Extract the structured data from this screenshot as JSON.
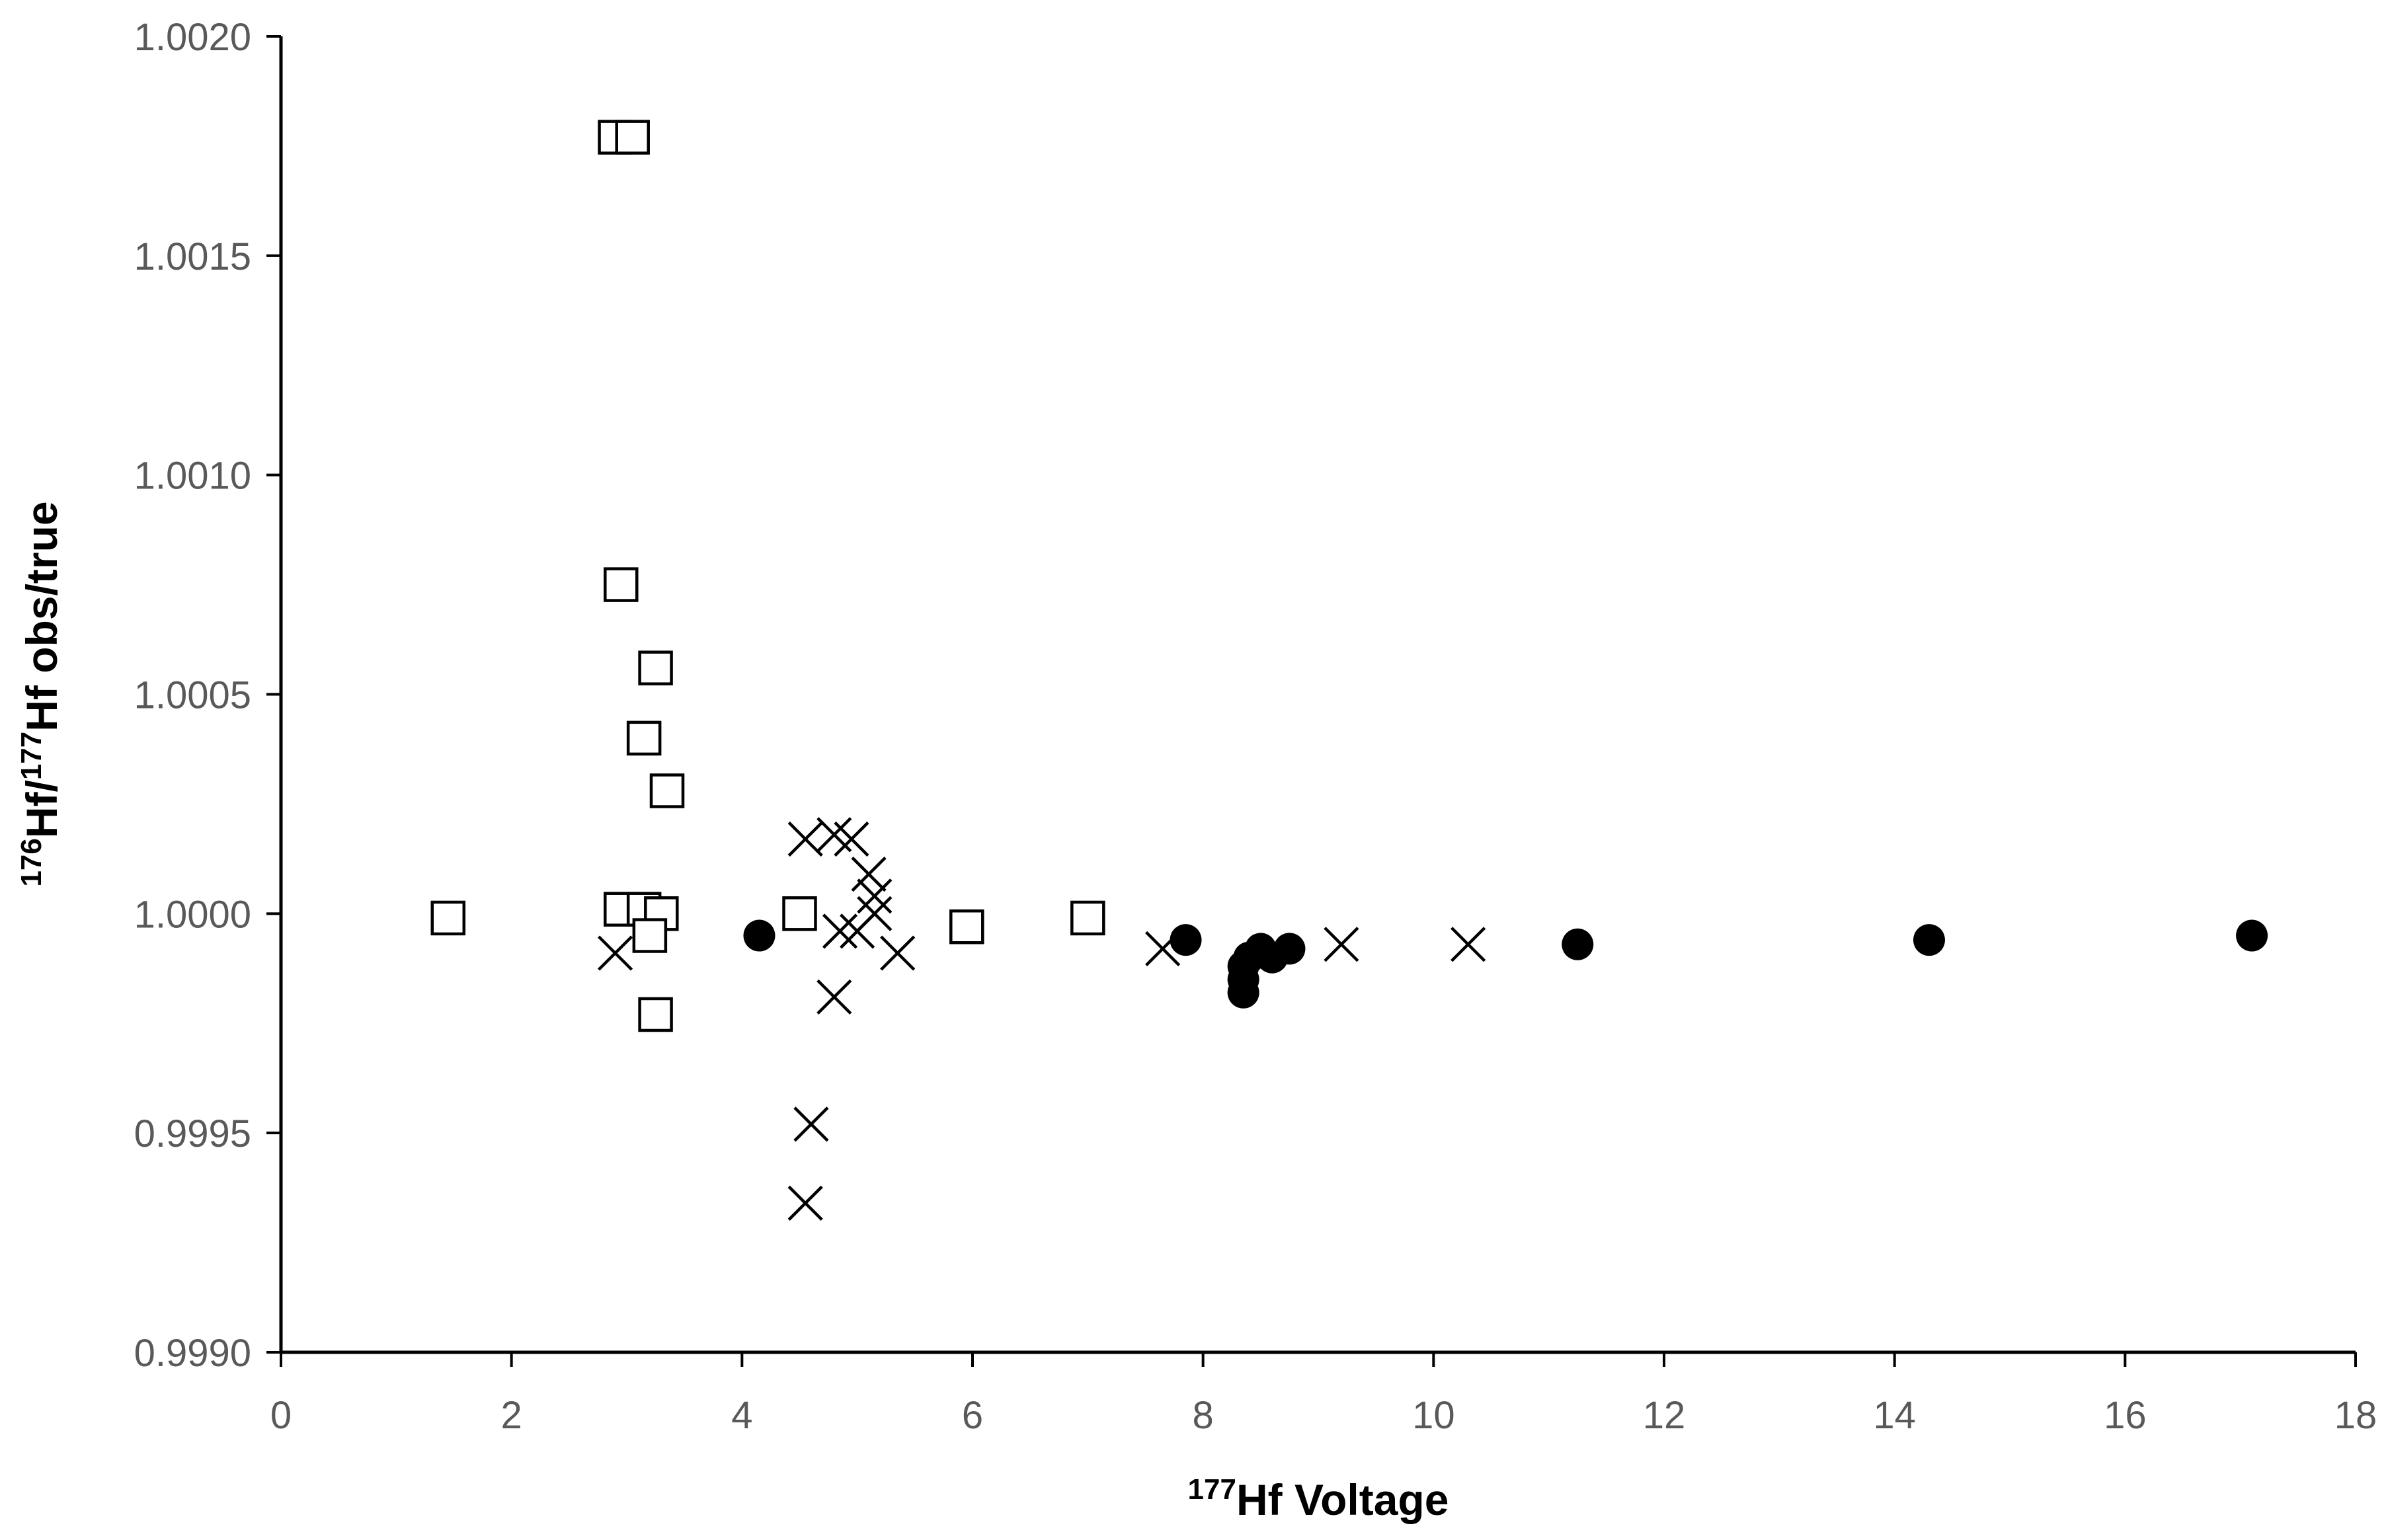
{
  "chart_data": {
    "type": "scatter",
    "xlabel": {
      "sup": "177",
      "text": "Hf Voltage"
    },
    "ylabel": {
      "sup1": "176",
      "mid": "Hf/",
      "sup2": "177",
      "text": "Hf obs/true"
    },
    "xlim": [
      0,
      18
    ],
    "ylim": [
      0.999,
      1.002
    ],
    "xticks": [
      "0",
      "2",
      "4",
      "6",
      "8",
      "10",
      "12",
      "14",
      "16",
      "18"
    ],
    "yticks": [
      "0.9990",
      "0.9995",
      "1.0000",
      "1.0005",
      "1.0010",
      "1.0015",
      "1.0020"
    ],
    "grid": false,
    "legend": "none",
    "series": [
      {
        "marker": "open-square",
        "points": [
          [
            2.9,
            1.00177
          ],
          [
            3.05,
            1.00177
          ],
          [
            2.95,
            1.00075
          ],
          [
            3.25,
            1.00056
          ],
          [
            3.15,
            1.0004
          ],
          [
            3.35,
            1.00028
          ],
          [
            1.45,
            0.99999
          ],
          [
            2.95,
            1.00001
          ],
          [
            3.15,
            1.00001
          ],
          [
            3.3,
            1.0
          ],
          [
            3.2,
            0.99995
          ],
          [
            3.25,
            0.99977
          ],
          [
            4.5,
            1.0
          ],
          [
            5.95,
            0.99997
          ],
          [
            7.0,
            0.99999
          ]
        ]
      },
      {
        "marker": "cross",
        "points": [
          [
            2.9,
            0.99991
          ],
          [
            4.55,
            1.00017
          ],
          [
            4.8,
            1.00018
          ],
          [
            4.95,
            1.00017
          ],
          [
            5.1,
            1.00009
          ],
          [
            5.15,
            1.00004
          ],
          [
            5.15,
            1.0
          ],
          [
            4.85,
            0.99996
          ],
          [
            5.0,
            0.99996
          ],
          [
            5.35,
            0.99991
          ],
          [
            4.8,
            0.99981
          ],
          [
            4.6,
            0.99952
          ],
          [
            4.55,
            0.99934
          ],
          [
            7.65,
            0.99992
          ],
          [
            9.2,
            0.99993
          ],
          [
            10.3,
            0.99993
          ]
        ]
      },
      {
        "marker": "filled-circle",
        "points": [
          [
            4.15,
            0.99995
          ],
          [
            7.85,
            0.99994
          ],
          [
            8.35,
            0.99982
          ],
          [
            8.35,
            0.99985
          ],
          [
            8.35,
            0.99988
          ],
          [
            8.4,
            0.9999
          ],
          [
            8.5,
            0.99992
          ],
          [
            8.6,
            0.9999
          ],
          [
            8.75,
            0.99992
          ],
          [
            11.25,
            0.99993
          ],
          [
            14.3,
            0.99994
          ],
          [
            17.1,
            0.99995
          ]
        ]
      }
    ]
  }
}
